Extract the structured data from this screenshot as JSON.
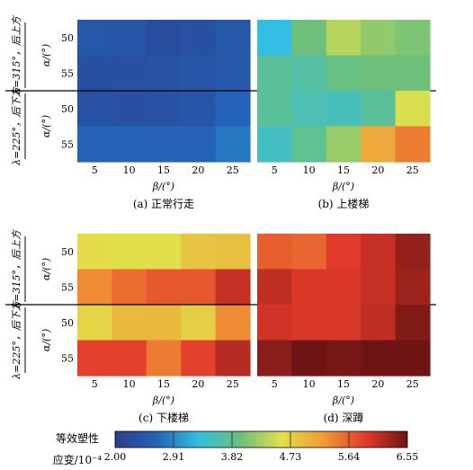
{
  "chart_data": {
    "type": "heatmap",
    "x_categories": [
      "5",
      "10",
      "15",
      "20",
      "25"
    ],
    "row_groups": [
      {
        "label": "λ=315°，后上方",
        "alpha_values": [
          "50",
          "55"
        ]
      },
      {
        "label": "λ=225°，后下方",
        "alpha_values": [
          "50",
          "55"
        ]
      }
    ],
    "xlabel": "β/(°)",
    "ylabel": "α/(°)",
    "panels": [
      {
        "caption": "(a) 正常行走",
        "rows": [
          [
            2.45,
            2.4,
            2.25,
            2.3,
            2.45
          ],
          [
            2.3,
            2.3,
            2.35,
            2.4,
            2.45
          ],
          [
            2.35,
            2.3,
            2.35,
            2.4,
            2.65
          ],
          [
            2.65,
            2.65,
            2.65,
            2.65,
            2.8
          ]
        ]
      },
      {
        "caption": "(b) 上楼梯",
        "rows": [
          [
            3.3,
            3.95,
            4.35,
            4.15,
            4.05
          ],
          [
            3.75,
            3.7,
            3.9,
            3.95,
            3.95
          ],
          [
            3.75,
            3.6,
            3.55,
            3.75,
            4.55
          ],
          [
            3.5,
            3.8,
            4.2,
            5.1,
            5.45
          ]
        ]
      },
      {
        "caption": "(c) 下楼梯",
        "rows": [
          [
            4.65,
            4.6,
            4.6,
            4.85,
            4.9
          ],
          [
            5.35,
            5.55,
            5.7,
            5.7,
            6.05
          ],
          [
            4.7,
            4.95,
            4.95,
            4.75,
            5.35
          ],
          [
            5.85,
            5.85,
            5.45,
            5.85,
            6.15
          ]
        ]
      },
      {
        "caption": "(d) 深蹲",
        "rows": [
          [
            5.65,
            5.6,
            5.9,
            6.05,
            6.35
          ],
          [
            6.1,
            5.95,
            5.95,
            6.05,
            6.3
          ],
          [
            6.0,
            5.95,
            5.95,
            6.1,
            6.45
          ],
          [
            6.4,
            6.55,
            6.5,
            6.55,
            7.2
          ]
        ]
      }
    ],
    "colorbar": {
      "label_line1": "等效塑性",
      "label_line2": "应变/10⁻⁴",
      "ticks": [
        "2.00",
        "2.91",
        "3.82",
        "4.73",
        "5.64",
        "6.55"
      ],
      "vmin": 2.0,
      "vmax": 6.55
    },
    "colormap": [
      "#2c3f8c",
      "#2463b8",
      "#33bfe3",
      "#6cc07a",
      "#e2e04a",
      "#f09a35",
      "#e23a2a",
      "#6e1414"
    ]
  }
}
